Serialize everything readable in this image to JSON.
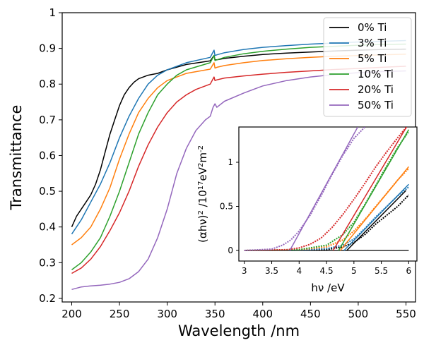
{
  "chart_data": [
    {
      "type": "line",
      "title": "",
      "xlabel": "Wavelength /nm",
      "ylabel": "Transmittance",
      "xlim": [
        190,
        560
      ],
      "ylim": [
        0.19,
        1.0
      ],
      "xticks": [
        200,
        250,
        300,
        350,
        400,
        450,
        500,
        550
      ],
      "yticks": [
        0.2,
        0.3,
        0.4,
        0.5,
        0.6,
        0.7,
        0.8,
        0.9,
        1.0
      ],
      "xtick_labels": [
        "200",
        "250",
        "300",
        "350",
        "400",
        "450",
        "500",
        "550"
      ],
      "ytick_labels": [
        "0.2",
        "0.3",
        "0.4",
        "0.5",
        "0.6",
        "0.7",
        "0.8",
        "0.9",
        "1"
      ],
      "grid": false,
      "legend_position": "top-right",
      "series": [
        {
          "name": "0% Ti",
          "color": "#000000",
          "x": [
            200,
            205,
            210,
            215,
            220,
            225,
            230,
            235,
            240,
            245,
            250,
            255,
            260,
            265,
            270,
            275,
            280,
            290,
            300,
            320,
            345,
            349,
            350,
            352,
            360,
            380,
            400,
            425,
            450,
            475,
            500,
            525,
            550
          ],
          "y": [
            0.4,
            0.43,
            0.45,
            0.47,
            0.49,
            0.52,
            0.56,
            0.61,
            0.66,
            0.7,
            0.74,
            0.77,
            0.79,
            0.805,
            0.815,
            0.82,
            0.825,
            0.83,
            0.84,
            0.855,
            0.865,
            0.88,
            0.868,
            0.868,
            0.872,
            0.878,
            0.883,
            0.887,
            0.89,
            0.893,
            0.895,
            0.897,
            0.898
          ]
        },
        {
          "name": "3% Ti",
          "color": "#1f77b4",
          "x": [
            200,
            210,
            220,
            230,
            240,
            250,
            260,
            270,
            280,
            290,
            300,
            320,
            345,
            349,
            350,
            352,
            360,
            380,
            400,
            425,
            450,
            475,
            500,
            525,
            550
          ],
          "y": [
            0.38,
            0.42,
            0.47,
            0.52,
            0.58,
            0.65,
            0.71,
            0.76,
            0.8,
            0.825,
            0.84,
            0.86,
            0.875,
            0.895,
            0.88,
            0.882,
            0.888,
            0.897,
            0.903,
            0.908,
            0.912,
            0.915,
            0.918,
            0.92,
            0.922
          ]
        },
        {
          "name": "5% Ti",
          "color": "#ff7f0e",
          "x": [
            200,
            210,
            220,
            230,
            240,
            250,
            260,
            270,
            280,
            290,
            300,
            320,
            345,
            349,
            350,
            352,
            360,
            380,
            400,
            425,
            450,
            475,
            500,
            525,
            550
          ],
          "y": [
            0.35,
            0.37,
            0.4,
            0.45,
            0.51,
            0.59,
            0.66,
            0.72,
            0.76,
            0.79,
            0.81,
            0.83,
            0.842,
            0.86,
            0.845,
            0.847,
            0.852,
            0.86,
            0.866,
            0.871,
            0.875,
            0.878,
            0.88,
            0.882,
            0.884
          ]
        },
        {
          "name": "10% Ti",
          "color": "#2ca02c",
          "x": [
            200,
            210,
            220,
            230,
            240,
            250,
            260,
            270,
            280,
            290,
            300,
            310,
            320,
            345,
            349,
            350,
            352,
            360,
            380,
            400,
            425,
            450,
            475,
            500,
            525,
            550
          ],
          "y": [
            0.28,
            0.3,
            0.33,
            0.37,
            0.43,
            0.5,
            0.58,
            0.66,
            0.72,
            0.77,
            0.8,
            0.825,
            0.84,
            0.86,
            0.88,
            0.866,
            0.868,
            0.875,
            0.885,
            0.892,
            0.898,
            0.903,
            0.906,
            0.909,
            0.911,
            0.912
          ]
        },
        {
          "name": "20% Ti",
          "color": "#d62728",
          "x": [
            200,
            210,
            220,
            230,
            240,
            250,
            260,
            270,
            280,
            290,
            300,
            310,
            320,
            330,
            345,
            349,
            350,
            352,
            360,
            380,
            400,
            425,
            450,
            475,
            500,
            525,
            550
          ],
          "y": [
            0.27,
            0.285,
            0.31,
            0.345,
            0.39,
            0.44,
            0.5,
            0.57,
            0.63,
            0.68,
            0.72,
            0.75,
            0.77,
            0.785,
            0.8,
            0.82,
            0.81,
            0.812,
            0.817,
            0.823,
            0.828,
            0.833,
            0.837,
            0.841,
            0.844,
            0.847,
            0.85
          ]
        },
        {
          "name": "50% Ti",
          "color": "#9467bd",
          "x": [
            200,
            210,
            220,
            230,
            240,
            250,
            260,
            270,
            280,
            290,
            300,
            310,
            320,
            330,
            340,
            345,
            348,
            350,
            352,
            360,
            380,
            400,
            425,
            450,
            475,
            500,
            525,
            550
          ],
          "y": [
            0.225,
            0.232,
            0.235,
            0.237,
            0.24,
            0.245,
            0.255,
            0.275,
            0.31,
            0.37,
            0.45,
            0.55,
            0.62,
            0.67,
            0.7,
            0.71,
            0.735,
            0.745,
            0.735,
            0.752,
            0.775,
            0.795,
            0.81,
            0.82,
            0.827,
            0.832,
            0.835,
            0.837
          ]
        }
      ]
    },
    {
      "type": "line",
      "title": "",
      "xlabel": "hν /eV",
      "ylabel_main": "(αhν)",
      "ylabel_sup1": "2",
      "ylabel_mid": " /10",
      "ylabel_sup2": "17",
      "ylabel_mid2": "eV",
      "ylabel_sup3": "2",
      "ylabel_mid3": "m",
      "ylabel_sup4": "-2",
      "xlim": [
        2.9,
        6.15
      ],
      "ylim": [
        -0.12,
        1.4
      ],
      "xticks": [
        3,
        3.5,
        4,
        4.5,
        5,
        5.5,
        6
      ],
      "yticks": [
        0,
        0.5,
        1
      ],
      "xtick_labels": [
        "3",
        "3.5",
        "4",
        "4.5",
        "5",
        "5.5",
        "6"
      ],
      "ytick_labels": [
        "0",
        "0.5",
        "1"
      ],
      "baseline": 0,
      "series": [
        {
          "name": "0% Ti",
          "color": "#000000",
          "x": [
            3.0,
            4.0,
            4.5,
            4.8,
            5.0,
            5.2,
            5.4,
            5.6,
            5.8,
            6.0
          ],
          "y": [
            0,
            0.002,
            0.01,
            0.04,
            0.09,
            0.18,
            0.3,
            0.4,
            0.5,
            0.63
          ],
          "fit": [
            [
              4.87,
              0
            ],
            [
              5.95,
              0.68
            ]
          ]
        },
        {
          "name": "3% Ti",
          "color": "#1f77b4",
          "x": [
            3.0,
            4.0,
            4.5,
            4.8,
            5.0,
            5.2,
            5.4,
            5.6,
            5.8,
            6.0
          ],
          "y": [
            0,
            0.005,
            0.02,
            0.06,
            0.13,
            0.25,
            0.38,
            0.5,
            0.62,
            0.72
          ],
          "fit": [
            [
              4.82,
              0
            ],
            [
              6.0,
              0.75
            ]
          ]
        },
        {
          "name": "5% Ti",
          "color": "#ff7f0e",
          "x": [
            3.0,
            4.0,
            4.5,
            4.8,
            5.0,
            5.2,
            5.4,
            5.6,
            5.8,
            6.0
          ],
          "y": [
            0,
            0.01,
            0.04,
            0.12,
            0.22,
            0.35,
            0.5,
            0.65,
            0.8,
            0.93
          ],
          "fit": [
            [
              4.75,
              0
            ],
            [
              6.0,
              0.95
            ]
          ]
        },
        {
          "name": "10% Ti",
          "color": "#2ca02c",
          "x": [
            3.0,
            4.0,
            4.5,
            4.8,
            5.0,
            5.2,
            5.4,
            5.6,
            5.8,
            6.0
          ],
          "y": [
            0,
            0.01,
            0.06,
            0.18,
            0.32,
            0.52,
            0.74,
            0.96,
            1.17,
            1.35
          ],
          "fit": [
            [
              4.72,
              0
            ],
            [
              6.0,
              1.37
            ]
          ]
        },
        {
          "name": "20% Ti",
          "color": "#d62728",
          "x": [
            3.0,
            3.8,
            4.0,
            4.2,
            4.4,
            4.6,
            4.8,
            5.0,
            5.2,
            5.4,
            5.6,
            5.8,
            5.96
          ],
          "y": [
            0,
            0.01,
            0.03,
            0.07,
            0.14,
            0.26,
            0.41,
            0.58,
            0.76,
            0.95,
            1.12,
            1.28,
            1.4
          ],
          "fit": [
            [
              4.62,
              0
            ],
            [
              5.96,
              1.4
            ]
          ]
        },
        {
          "name": "50% Ti",
          "color": "#9467bd",
          "x": [
            3.0,
            3.5,
            3.7,
            3.85,
            4.0,
            4.2,
            4.4,
            4.6,
            4.8,
            5.0,
            5.2
          ],
          "y": [
            0,
            0.015,
            0.06,
            0.12,
            0.22,
            0.4,
            0.62,
            0.86,
            1.08,
            1.27,
            1.4
          ],
          "fit": [
            [
              3.83,
              0
            ],
            [
              5.07,
              1.4
            ]
          ]
        }
      ]
    }
  ]
}
